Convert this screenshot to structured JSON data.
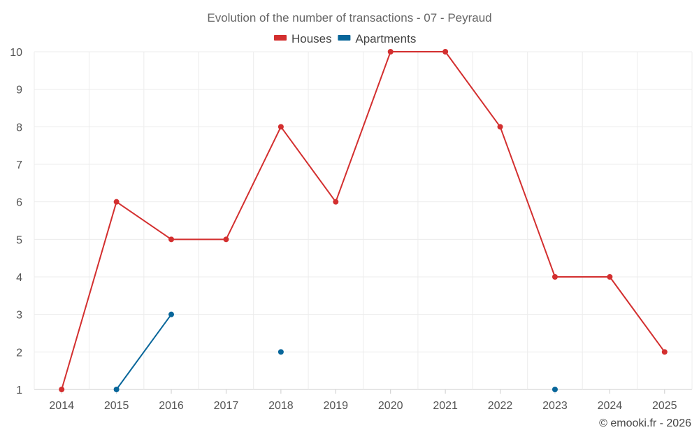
{
  "chart_data": {
    "type": "line",
    "title": "Evolution of the number of transactions - 07 - Peyraud",
    "categories": [
      "2014",
      "2015",
      "2016",
      "2017",
      "2018",
      "2019",
      "2020",
      "2021",
      "2022",
      "2023",
      "2024",
      "2025"
    ],
    "ylim": [
      1,
      10
    ],
    "yticks": [
      1,
      2,
      3,
      4,
      5,
      6,
      7,
      8,
      9,
      10
    ],
    "xlabel": "",
    "ylabel": "",
    "grid": true,
    "legend_position": "top-center",
    "series": [
      {
        "name": "Houses",
        "color": "#d32f2f",
        "values": [
          1,
          6,
          5,
          5,
          8,
          6,
          10,
          10,
          8,
          4,
          4,
          2
        ]
      },
      {
        "name": "Apartments",
        "color": "#08669a",
        "values": [
          null,
          1,
          3,
          null,
          2,
          null,
          null,
          null,
          null,
          1,
          null,
          null
        ]
      }
    ]
  },
  "credit": "© emooki.fr - 2026"
}
